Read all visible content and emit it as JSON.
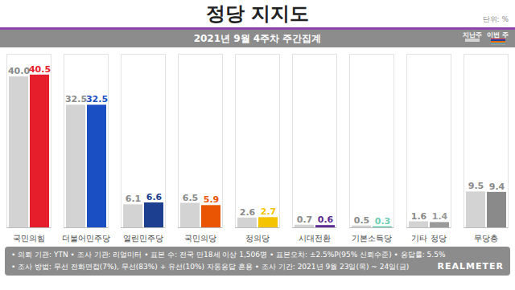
{
  "chart_data": {
    "type": "bar",
    "title": "정당 지지도",
    "subtitle": "2021년 9월 4주차 주간집계",
    "unit": "단위: %",
    "categories": [
      "국민의힘",
      "더불어민주당",
      "열린민주당",
      "국민의당",
      "정의당",
      "시대전환",
      "기본소득당",
      "기타 정당",
      "무당층"
    ],
    "series": [
      {
        "name": "지난주",
        "color": "#d3d3d3",
        "values": [
          40.0,
          32.5,
          6.1,
          6.5,
          2.6,
          0.7,
          0.5,
          1.6,
          9.5
        ],
        "value_labels": [
          "40.0",
          "32.5",
          "6.1",
          "6.5",
          "2.6",
          "0.7",
          "0.5",
          "1.6",
          "9.5"
        ]
      },
      {
        "name": "이번 주",
        "colors": [
          "#e61e2b",
          "#1a4fc4",
          "#1d3f8f",
          "#ea5504",
          "#f5c400",
          "#5b2c91",
          "#6ccfb3",
          "#9a9a9a",
          "#8a8a8a"
        ],
        "values": [
          40.5,
          32.5,
          6.6,
          5.9,
          2.7,
          0.6,
          0.3,
          1.4,
          9.4
        ],
        "value_labels": [
          "40.5",
          "32.5",
          "6.6",
          "5.9",
          "2.7",
          "0.6",
          "0.3",
          "1.4",
          "9.4"
        ]
      }
    ],
    "ylim": [
      0,
      46
    ],
    "yticks": [],
    "grid": false,
    "data_labels": true,
    "tick_labels": "x",
    "notes": [
      "• 의뢰 기관: YTN • 조사 기관: 리얼미터 • 표본 수: 전국 만18세 이상 1,506명 • 표본오차: ±2.5%P(95% 신뢰수준) • 응답률: 5.5%",
      "• 조사 방법: 무선 전화면접(7%), 무선(83%) + 유선(10%) 자동응답 혼용 • 조사 기간: 2021년 9월 23일(목) ~ 24일(금)"
    ],
    "source": "REALMETER"
  }
}
